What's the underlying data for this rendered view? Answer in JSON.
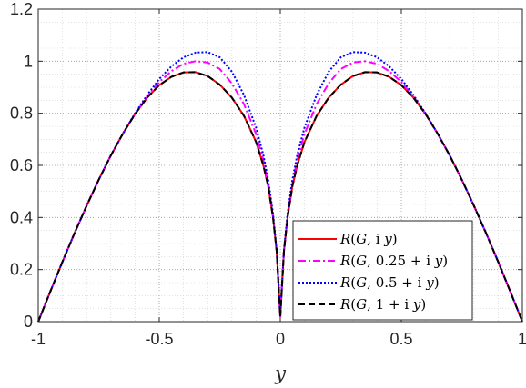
{
  "chart_data": {
    "type": "line",
    "xlabel": "y",
    "ylabel": "",
    "title": "",
    "xlim": [
      -1,
      1
    ],
    "ylim": [
      0,
      1.2
    ],
    "xticks": [
      -1,
      -0.5,
      0,
      0.5,
      1
    ],
    "xtick_labels": [
      "-1",
      "-0.5",
      "0",
      "0.5",
      "1"
    ],
    "yticks": [
      0,
      0.2,
      0.4,
      0.6,
      0.8,
      1,
      1.2
    ],
    "ytick_labels": [
      "0",
      "0.2",
      "0.4",
      "0.6",
      "0.8",
      "1",
      "1.2"
    ],
    "grid": "on (major and minor, dotted)",
    "legend_position": "bottom-right",
    "x": [
      -1,
      -0.95,
      -0.9,
      -0.85,
      -0.8,
      -0.75,
      -0.7,
      -0.65,
      -0.6,
      -0.55,
      -0.5,
      -0.45,
      -0.4,
      -0.35,
      -0.3,
      -0.25,
      -0.2,
      -0.15,
      -0.1,
      -0.07,
      -0.05,
      -0.03,
      -0.015,
      0,
      0.015,
      0.03,
      0.05,
      0.07,
      0.1,
      0.15,
      0.2,
      0.25,
      0.3,
      0.35,
      0.4,
      0.45,
      0.5,
      0.55,
      0.6,
      0.65,
      0.7,
      0.75,
      0.8,
      0.85,
      0.9,
      0.95,
      1
    ],
    "series": [
      {
        "name": "R(G, i y)",
        "color": "#ff0000",
        "dash": "solid",
        "values": [
          0,
          0.116,
          0.23,
          0.34,
          0.445,
          0.545,
          0.638,
          0.722,
          0.797,
          0.86,
          0.908,
          0.94,
          0.957,
          0.958,
          0.943,
          0.91,
          0.86,
          0.79,
          0.69,
          0.6,
          0.52,
          0.4,
          0.27,
          0.02,
          0.27,
          0.4,
          0.52,
          0.6,
          0.69,
          0.79,
          0.86,
          0.91,
          0.943,
          0.958,
          0.957,
          0.94,
          0.908,
          0.86,
          0.797,
          0.722,
          0.638,
          0.545,
          0.445,
          0.34,
          0.23,
          0.116,
          0
        ]
      },
      {
        "name": "R(G, 0.25 + i y)",
        "color": "#ff00ff",
        "dash": "dashdot",
        "values": [
          0,
          0.116,
          0.23,
          0.34,
          0.445,
          0.545,
          0.638,
          0.722,
          0.798,
          0.864,
          0.92,
          0.962,
          0.99,
          1.0,
          0.995,
          0.97,
          0.915,
          0.835,
          0.72,
          0.62,
          0.53,
          0.405,
          0.27,
          0.02,
          0.27,
          0.405,
          0.53,
          0.62,
          0.72,
          0.835,
          0.915,
          0.97,
          0.995,
          1.0,
          0.99,
          0.962,
          0.92,
          0.864,
          0.798,
          0.722,
          0.638,
          0.545,
          0.445,
          0.34,
          0.23,
          0.116,
          0
        ]
      },
      {
        "name": "R(G, 0.5 + i y)",
        "color": "#0000ff",
        "dash": "dotted",
        "values": [
          0,
          0.116,
          0.23,
          0.34,
          0.445,
          0.545,
          0.638,
          0.722,
          0.8,
          0.87,
          0.932,
          0.98,
          1.015,
          1.033,
          1.035,
          1.015,
          0.96,
          0.87,
          0.745,
          0.64,
          0.545,
          0.415,
          0.275,
          0.02,
          0.275,
          0.415,
          0.545,
          0.64,
          0.745,
          0.87,
          0.96,
          1.015,
          1.035,
          1.033,
          1.015,
          0.98,
          0.932,
          0.87,
          0.8,
          0.722,
          0.638,
          0.545,
          0.445,
          0.34,
          0.23,
          0.116,
          0
        ]
      },
      {
        "name": "R(G, 1 + i y)",
        "color": "#000000",
        "dash": "dashed",
        "values": [
          0,
          0.116,
          0.23,
          0.34,
          0.445,
          0.545,
          0.638,
          0.722,
          0.797,
          0.86,
          0.908,
          0.94,
          0.957,
          0.958,
          0.943,
          0.91,
          0.86,
          0.79,
          0.69,
          0.6,
          0.52,
          0.4,
          0.27,
          0.02,
          0.27,
          0.4,
          0.52,
          0.6,
          0.69,
          0.79,
          0.86,
          0.91,
          0.943,
          0.958,
          0.957,
          0.94,
          0.908,
          0.86,
          0.797,
          0.722,
          0.638,
          0.545,
          0.445,
          0.34,
          0.23,
          0.116,
          0
        ]
      }
    ],
    "legend": {
      "entries": [
        {
          "prefix": "R",
          "arg_g": "G",
          "arg_rest": "i",
          "var": "y",
          "shift": ""
        },
        {
          "prefix": "R",
          "arg_g": "G",
          "arg_rest": "i",
          "var": "y",
          "shift": "0.25 + "
        },
        {
          "prefix": "R",
          "arg_g": "G",
          "arg_rest": "i",
          "var": "y",
          "shift": "0.5 + "
        },
        {
          "prefix": "R",
          "arg_g": "G",
          "arg_rest": "i",
          "var": "y",
          "shift": "1 + "
        }
      ]
    }
  }
}
